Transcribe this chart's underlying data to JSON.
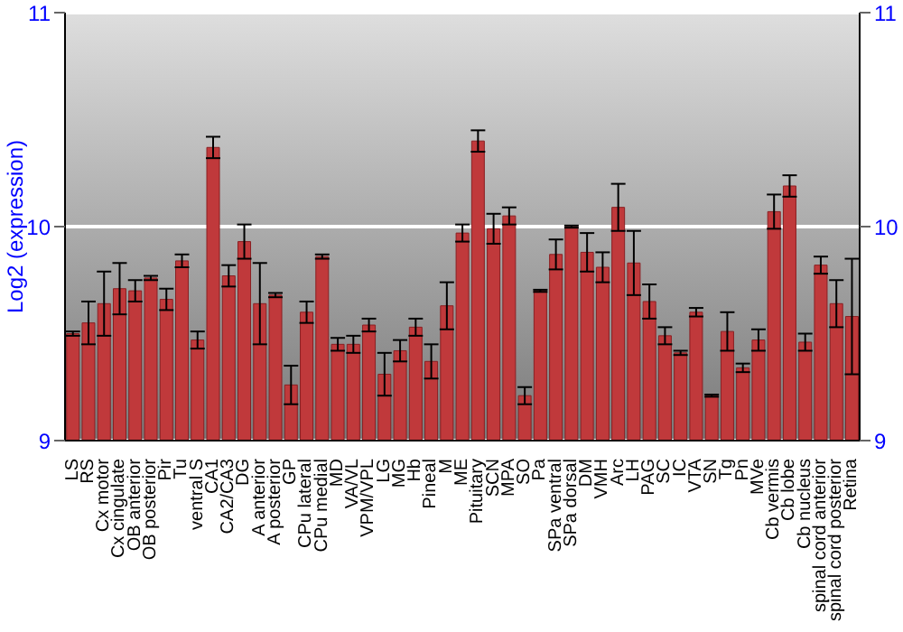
{
  "chart_data": {
    "type": "bar",
    "ylabel": "Log2 (expression)",
    "categories": [
      "LS",
      "RS",
      "Cx motor",
      "Cx cingulate",
      "OB anterior",
      "OB posterior",
      "Pir",
      "Tu",
      "ventral S",
      "CA1",
      "CA2/CA3",
      "DG",
      "A anterior",
      "A posterior",
      "GP",
      "CPu lateral",
      "CPu medial",
      "MD",
      "VA/VL",
      "VPM/VPL",
      "LG",
      "MG",
      "Hb",
      "Pineal",
      "M",
      "ME",
      "Pituitary",
      "SCN",
      "MPA",
      "SO",
      "Pa",
      "SPa ventral",
      "SPa dorsal",
      "DM",
      "VMH",
      "Arc",
      "LH",
      "PAG",
      "SC",
      "IC",
      "VTA",
      "SN",
      "Tg",
      "Pn",
      "MVe",
      "Cb vermis",
      "Cb lobe",
      "Cb nucleus",
      "spinal cord anterior",
      "spinal cord posterior",
      "Retina"
    ],
    "values": [
      9.5,
      9.55,
      9.64,
      9.71,
      9.7,
      9.76,
      9.66,
      9.84,
      9.47,
      10.37,
      9.77,
      9.93,
      9.64,
      9.68,
      9.26,
      9.6,
      9.86,
      9.45,
      9.45,
      9.54,
      9.31,
      9.42,
      9.53,
      9.37,
      9.63,
      9.97,
      10.4,
      9.99,
      10.05,
      9.21,
      9.7,
      9.87,
      10.0,
      9.88,
      9.81,
      10.09,
      9.83,
      9.65,
      9.49,
      9.41,
      9.6,
      9.21,
      9.51,
      9.34,
      9.47,
      10.07,
      10.19,
      9.46,
      9.82,
      9.64,
      9.58
    ],
    "errors": [
      0.01,
      0.1,
      0.15,
      0.12,
      0.05,
      0.01,
      0.05,
      0.03,
      0.04,
      0.05,
      0.05,
      0.08,
      0.19,
      0.01,
      0.09,
      0.05,
      0.01,
      0.03,
      0.04,
      0.03,
      0.1,
      0.05,
      0.04,
      0.08,
      0.11,
      0.04,
      0.05,
      0.07,
      0.04,
      0.04,
      0.005,
      0.07,
      0.005,
      0.09,
      0.07,
      0.11,
      0.15,
      0.08,
      0.04,
      0.01,
      0.02,
      0.005,
      0.09,
      0.02,
      0.05,
      0.08,
      0.05,
      0.04,
      0.04,
      0.11,
      0.27
    ],
    "color": "#c0393b",
    "ylim": [
      9,
      11
    ],
    "yticks": [
      9,
      10,
      11
    ],
    "y2lim": [
      9,
      11
    ],
    "y2ticks": [
      9,
      10,
      11
    ],
    "grid": "y"
  }
}
